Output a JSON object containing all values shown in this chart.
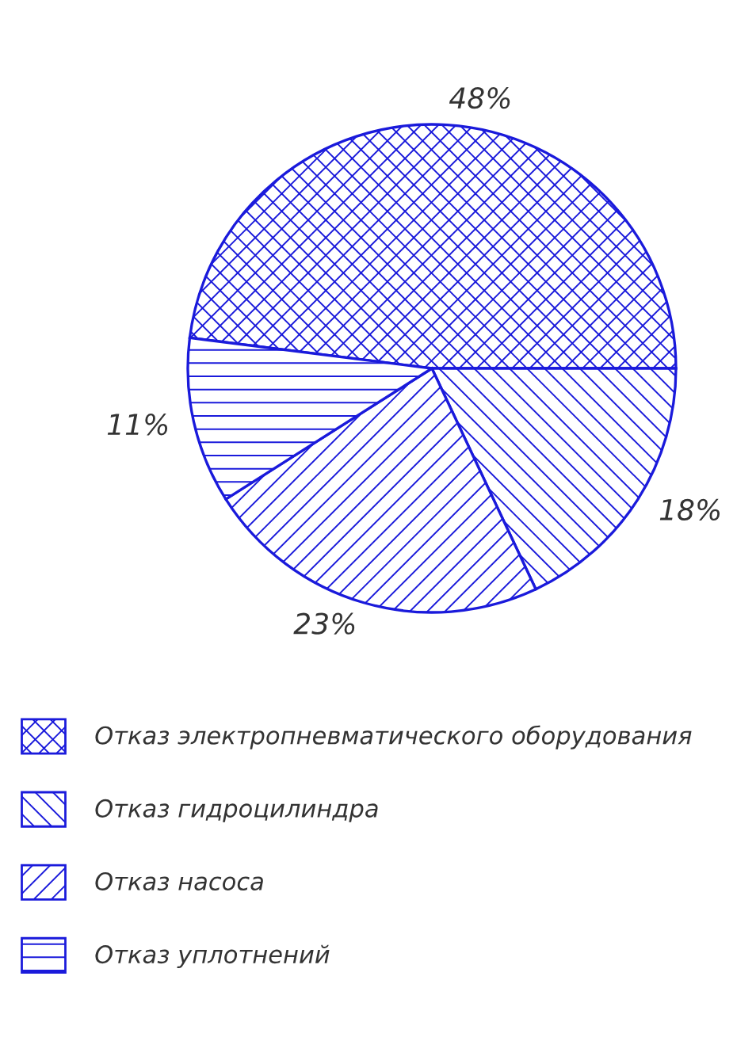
{
  "chart_data": {
    "type": "pie",
    "categories": [
      "Отказ электропневматического оборудования",
      "Отказ гидроцилиндра",
      "Отказ насоса",
      "Отказ уплотнений"
    ],
    "values": [
      48,
      18,
      23,
      11
    ],
    "value_labels": [
      "48%",
      "18%",
      "23%",
      "11%"
    ],
    "colors": [
      "#1a1adb",
      "#1a1adb",
      "#1a1adb",
      "#1a1adb"
    ],
    "legend": "bottom"
  }
}
